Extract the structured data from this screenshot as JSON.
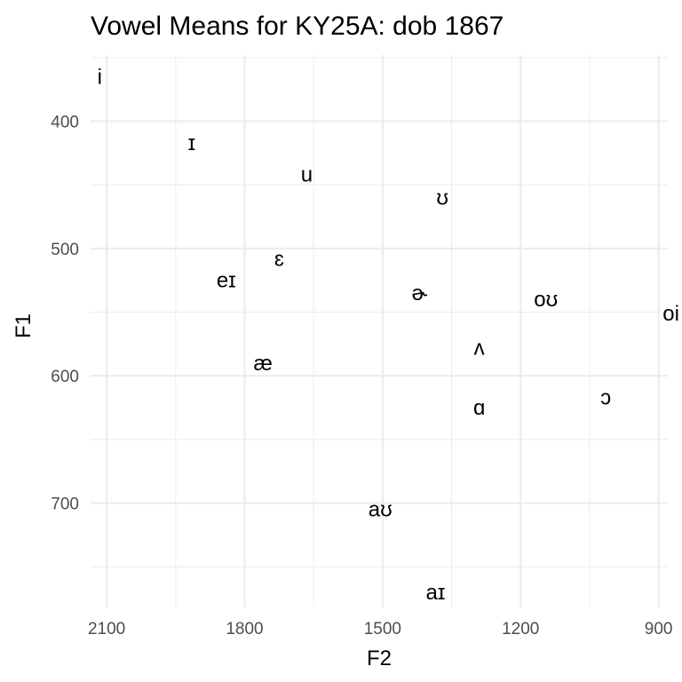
{
  "chart_data": {
    "type": "scatter",
    "title": "Vowel Means for KY25A: dob 1867",
    "xlabel": "F2",
    "ylabel": "F1",
    "x_reversed": true,
    "y_reversed": true,
    "xlim": [
      2135,
      880
    ],
    "ylim": [
      348,
      782
    ],
    "xticks": [
      2100,
      1800,
      1500,
      1200,
      900
    ],
    "xtick_labels": [
      "2100",
      "1800",
      "1500",
      "1200",
      "900"
    ],
    "yticks": [
      400,
      500,
      600,
      700
    ],
    "ytick_labels": [
      "400",
      "500",
      "600",
      "700"
    ],
    "grid": true,
    "points": [
      {
        "label": "i",
        "x": 2115,
        "y": 365
      },
      {
        "label": "ɪ",
        "x": 1915,
        "y": 417
      },
      {
        "label": "u",
        "x": 1665,
        "y": 442
      },
      {
        "label": "ʊ",
        "x": 1370,
        "y": 460
      },
      {
        "label": "ɛ",
        "x": 1725,
        "y": 508
      },
      {
        "label": "eɪ",
        "x": 1840,
        "y": 525
      },
      {
        "label": "ɚ",
        "x": 1420,
        "y": 535
      },
      {
        "label": "oʊ",
        "x": 1145,
        "y": 540
      },
      {
        "label": "oi",
        "x": 873,
        "y": 551
      },
      {
        "label": "ʌ",
        "x": 1290,
        "y": 578
      },
      {
        "label": "æ",
        "x": 1760,
        "y": 590
      },
      {
        "label": "ɔ",
        "x": 1015,
        "y": 617
      },
      {
        "label": "ɑ",
        "x": 1290,
        "y": 625
      },
      {
        "label": "aʊ",
        "x": 1505,
        "y": 705
      },
      {
        "label": "aɪ",
        "x": 1385,
        "y": 770
      }
    ]
  }
}
